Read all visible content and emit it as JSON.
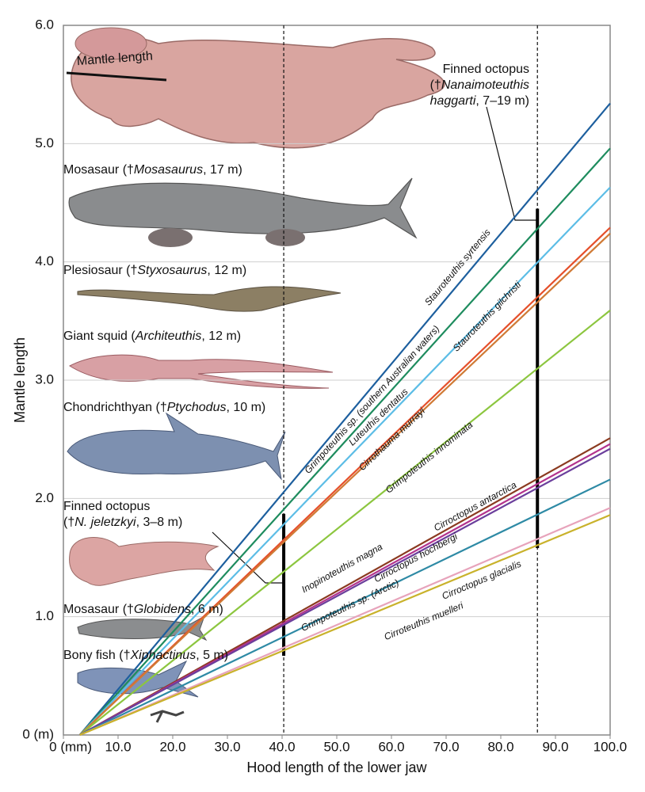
{
  "chart_data": {
    "type": "line",
    "xlabel": "Hood length of the lower jaw",
    "ylabel": "Mantle length",
    "xlim": [
      0,
      100
    ],
    "ylim": [
      0,
      6
    ],
    "xticks": [
      {
        "value": 0,
        "label": "0 (mm)"
      },
      {
        "value": 10,
        "label": "10.0"
      },
      {
        "value": 20,
        "label": "20.0"
      },
      {
        "value": 30,
        "label": "30.0"
      },
      {
        "value": 40,
        "label": "40.0"
      },
      {
        "value": 50,
        "label": "50.0"
      },
      {
        "value": 60,
        "label": "60.0"
      },
      {
        "value": 70,
        "label": "70.0"
      },
      {
        "value": 80,
        "label": "80.0"
      },
      {
        "value": 90,
        "label": "90.0"
      },
      {
        "value": 100,
        "label": "100.0"
      }
    ],
    "yticks": [
      {
        "value": 0,
        "label": "0 (m)"
      },
      {
        "value": 1,
        "label": "1.0"
      },
      {
        "value": 2,
        "label": "2.0"
      },
      {
        "value": 3,
        "label": "3.0"
      },
      {
        "value": 4,
        "label": "4.0"
      },
      {
        "value": 5,
        "label": "5.0"
      },
      {
        "value": 6,
        "label": "6.0"
      }
    ],
    "grid": true,
    "x": [
      3,
      100
    ],
    "series": [
      {
        "name": "Stauroteuthis syrtensis",
        "color": "#1d5f9e",
        "values": [
          0,
          5.34
        ]
      },
      {
        "name": "Grimpoteuthis sp. (southern Australian waters)",
        "color": "#1e8c5e",
        "values": [
          0,
          4.96
        ]
      },
      {
        "name": "Stauroteuthis gilchristi",
        "color": "#5cbde6",
        "values": [
          0,
          4.63
        ]
      },
      {
        "name": "Luteuthis dentatus",
        "color": "#e5502b",
        "values": [
          0,
          4.29
        ]
      },
      {
        "name": "Cirrothauma murrayi",
        "color": "#d07a35",
        "values": [
          0,
          4.24
        ]
      },
      {
        "name": "Grimpoteuthis innominata",
        "color": "#8cc63f",
        "values": [
          0,
          3.59
        ]
      },
      {
        "name": "Inopinoteuthis magna",
        "color": "#8b3a20",
        "values": [
          0,
          2.51
        ]
      },
      {
        "name": "Cirroctopus antarctica",
        "color": "#b3338d",
        "values": [
          0,
          2.46
        ]
      },
      {
        "name": "Cirroctopus hochbergi",
        "color": "#6b3f9c",
        "values": [
          0,
          2.42
        ]
      },
      {
        "name": "Grimpoteuthis sp. (Arctic)",
        "color": "#2e8aa5",
        "values": [
          0,
          2.16
        ]
      },
      {
        "name": "Cirroctopus glacialis",
        "color": "#e7a3bb",
        "values": [
          0,
          1.92
        ]
      },
      {
        "name": "Cirroteuthis muelleri",
        "color": "#c9b22b",
        "values": [
          0,
          1.86
        ]
      }
    ],
    "annotations": [
      {
        "x": 40.3,
        "ymin": 0.67,
        "ymax": 1.87,
        "lines": [
          [
            {
              "text": "Finned octopus",
              "italic": false
            }
          ],
          [
            {
              "text": "(†",
              "italic": false
            },
            {
              "text": "N. jeletzkyi",
              "italic": true
            },
            {
              "text": ", 3–8 m)",
              "italic": false
            }
          ]
        ]
      },
      {
        "x": 86.7,
        "ymin": 1.58,
        "ymax": 4.45,
        "lines": [
          [
            {
              "text": "Finned octopus",
              "italic": false
            }
          ],
          [
            {
              "text": "(†",
              "italic": false
            },
            {
              "text": "Nanaimoteuthis",
              "italic": true
            }
          ],
          [
            {
              "text": "haggarti",
              "italic": true
            },
            {
              "text": ", 7–19 m)",
              "italic": false
            }
          ]
        ]
      }
    ],
    "figure_label": "Mantle length",
    "animals": [
      [
        {
          "text": "Mosasaur (†",
          "italic": false
        },
        {
          "text": "Mosasaurus",
          "italic": true
        },
        {
          "text": ", 17 m)",
          "italic": false
        }
      ],
      [
        {
          "text": "Plesiosaur (†",
          "italic": false
        },
        {
          "text": "Styxosaurus",
          "italic": true
        },
        {
          "text": ", 12 m)",
          "italic": false
        }
      ],
      [
        {
          "text": "Giant squid (",
          "italic": false
        },
        {
          "text": "Architeuthis",
          "italic": true
        },
        {
          "text": ", 12 m)",
          "italic": false
        }
      ],
      [
        {
          "text": "Chondrichthyan (†",
          "italic": false
        },
        {
          "text": "Ptychodus",
          "italic": true
        },
        {
          "text": ", 10 m)",
          "italic": false
        }
      ],
      [
        {
          "text": "Mosasaur (†",
          "italic": false
        },
        {
          "text": "Globidens",
          "italic": true
        },
        {
          "text": ", 6 m)",
          "italic": false
        }
      ],
      [
        {
          "text": "Bony fish (†",
          "italic": false
        },
        {
          "text": "Xiphactinus",
          "italic": true
        },
        {
          "text": ", 5 m)",
          "italic": false
        }
      ]
    ]
  }
}
